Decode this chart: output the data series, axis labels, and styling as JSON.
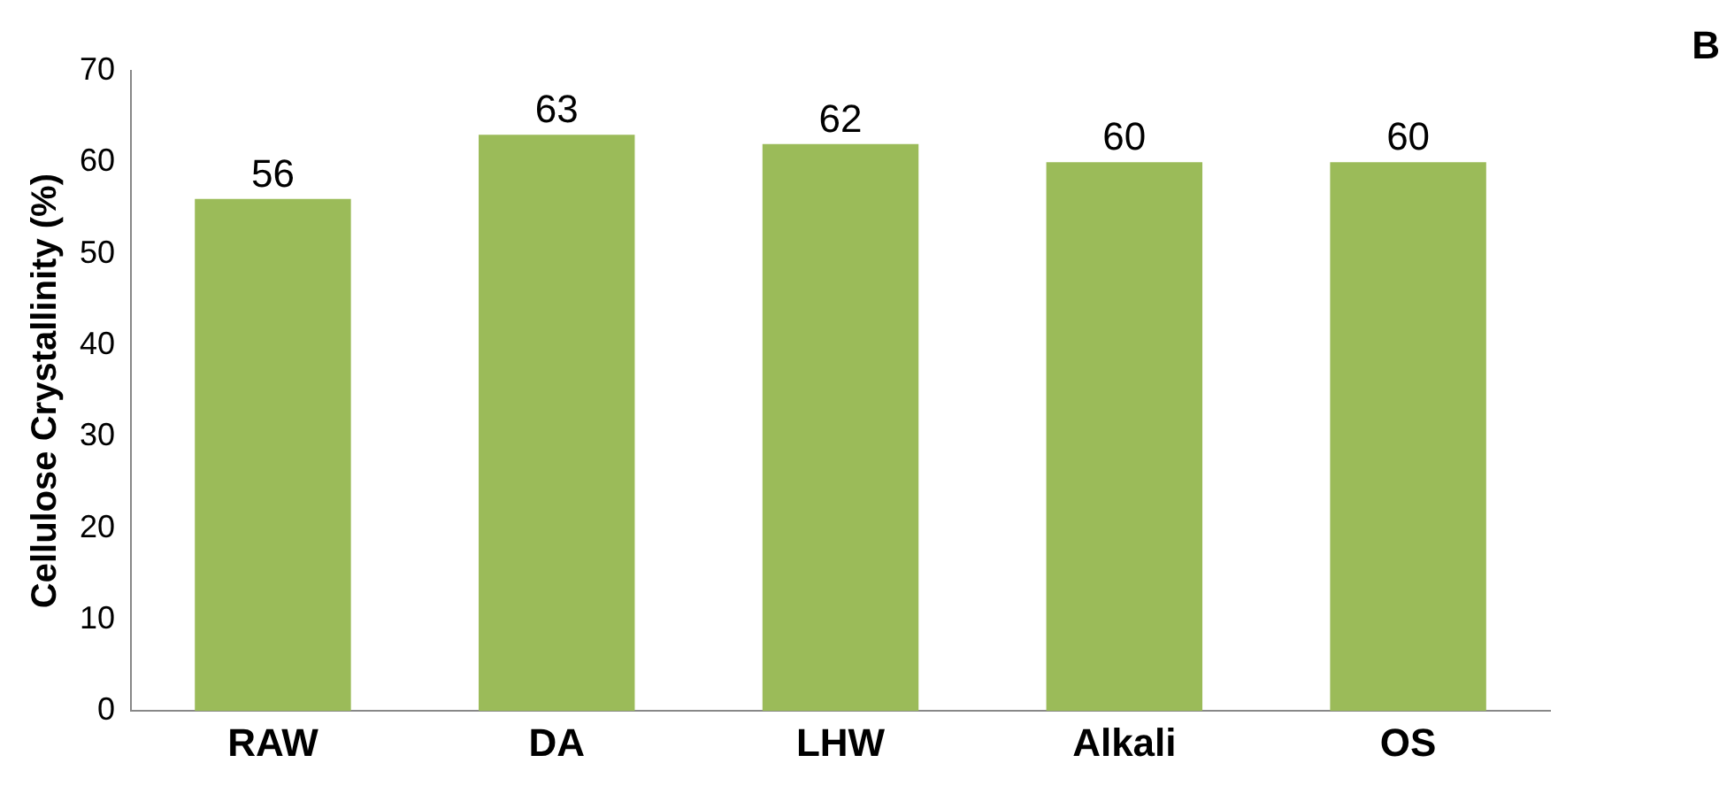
{
  "chart_data": {
    "type": "bar",
    "ylabel": "Cellulose Crystallinity (%)",
    "categories": [
      "RAW",
      "DA",
      "LHW",
      "Alkali",
      "OS"
    ],
    "values": [
      56,
      63,
      62,
      60,
      60
    ],
    "color": "#9bbb59",
    "ylim": [
      0,
      70
    ],
    "yticks": [
      0,
      10,
      20,
      30,
      40,
      50,
      60,
      70
    ],
    "grid": false,
    "legend": false,
    "data_labels": true,
    "annotations": [
      "B"
    ]
  }
}
